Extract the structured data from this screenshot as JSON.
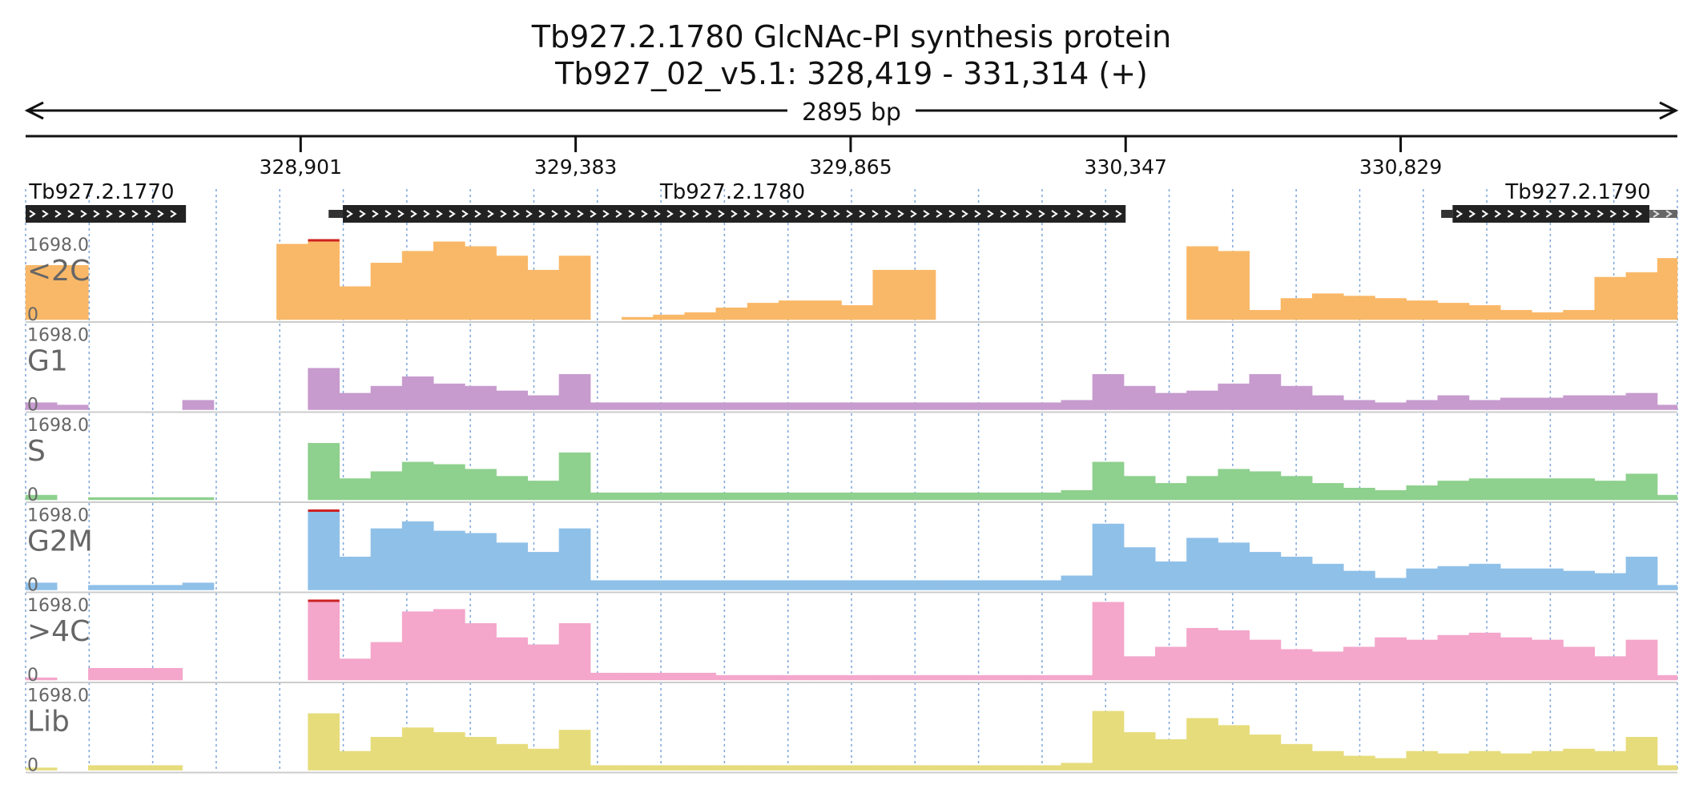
{
  "header": {
    "gene_title": "Tb927.2.1780  GlcNAc-PI synthesis protein",
    "location": "Tb927_02_v5.1: 328,419 - 331,314 (+)",
    "span_label": "2895 bp"
  },
  "colors": {
    "axis": "#111111",
    "gene_bar": "#222222",
    "grid": "#7ea6d8",
    "track_label": "#666666",
    "clip_marker": "#cc2222"
  },
  "chart_data": {
    "type": "bar",
    "region": {
      "start": 328419,
      "end": 331314,
      "strand": "+"
    },
    "ruler_ticks": [
      {
        "pos": 328901,
        "label": "328,901"
      },
      {
        "pos": 329383,
        "label": "329,383"
      },
      {
        "pos": 329865,
        "label": "329,865"
      },
      {
        "pos": 330347,
        "label": "330,347"
      },
      {
        "pos": 330829,
        "label": "330,829"
      }
    ],
    "genes": [
      {
        "id": "Tb927.2.1770",
        "start": 328419,
        "end": 328700,
        "utr_end": 328700,
        "label_anchor": "start",
        "label_pos": 328425
      },
      {
        "id": "Tb927.2.1780",
        "start": 328950,
        "end": 330347,
        "coding_start": 328975,
        "label_anchor": "middle",
        "label_pos": 329658
      },
      {
        "id": "Tb927.2.1790",
        "start": 330900,
        "end": 331314,
        "coding_start": 330920,
        "coding_end": 331265,
        "label_anchor": "middle",
        "label_pos": 331140
      }
    ],
    "ymax_label": "1698.0",
    "ymin_label": "0",
    "ylim": [
      0,
      1698
    ],
    "bin_starts": [
      328419,
      328474,
      328529,
      328584,
      328639,
      328694,
      328749,
      328804,
      328859,
      328914,
      328969,
      329024,
      329079,
      329134,
      329189,
      329244,
      329299,
      329354,
      329409,
      329464,
      329519,
      329574,
      329629,
      329684,
      329739,
      329794,
      329849,
      329904,
      329959,
      330014,
      330069,
      330124,
      330179,
      330234,
      330289,
      330344,
      330399,
      330454,
      330509,
      330564,
      330619,
      330674,
      330729,
      330784,
      330839,
      330894,
      330949,
      331004,
      331059,
      331114,
      331169,
      331224,
      331279
    ],
    "bin_width": 55,
    "series": [
      {
        "name": "<2C",
        "color": "#f9b868",
        "values": [
          1150,
          1150,
          0,
          0,
          0,
          0,
          0,
          0,
          1600,
          1698,
          700,
          1200,
          1450,
          1650,
          1550,
          1350,
          1050,
          1350,
          0,
          50,
          100,
          150,
          250,
          350,
          400,
          400,
          300,
          1050,
          1050,
          0,
          0,
          0,
          0,
          0,
          0,
          0,
          0,
          1550,
          1450,
          200,
          450,
          550,
          500,
          450,
          400,
          350,
          300,
          200,
          150,
          200,
          900,
          1000,
          1300
        ]
      },
      {
        "name": "G1",
        "color": "#c79bce",
        "values": [
          150,
          100,
          0,
          0,
          0,
          200,
          0,
          0,
          0,
          880,
          350,
          500,
          700,
          550,
          500,
          400,
          300,
          750,
          150,
          150,
          150,
          150,
          150,
          150,
          150,
          150,
          150,
          150,
          150,
          150,
          150,
          150,
          150,
          200,
          750,
          500,
          350,
          400,
          550,
          750,
          500,
          300,
          200,
          150,
          200,
          300,
          200,
          250,
          250,
          300,
          300,
          350,
          100
        ]
      },
      {
        "name": "S",
        "color": "#8ed08d",
        "values": [
          100,
          0,
          50,
          50,
          50,
          50,
          0,
          0,
          0,
          1200,
          450,
          600,
          800,
          750,
          650,
          500,
          400,
          1000,
          150,
          150,
          150,
          150,
          150,
          150,
          150,
          150,
          150,
          150,
          150,
          150,
          150,
          150,
          150,
          200,
          800,
          500,
          350,
          500,
          650,
          600,
          500,
          350,
          250,
          200,
          300,
          400,
          450,
          450,
          450,
          450,
          400,
          550,
          100
        ]
      },
      {
        "name": "G2M",
        "color": "#8fc0e8",
        "values": [
          150,
          0,
          100,
          100,
          100,
          150,
          0,
          0,
          0,
          1698,
          700,
          1300,
          1450,
          1250,
          1200,
          1000,
          800,
          1300,
          200,
          200,
          200,
          200,
          200,
          200,
          200,
          200,
          200,
          200,
          200,
          200,
          200,
          200,
          200,
          300,
          1400,
          900,
          600,
          1100,
          1000,
          800,
          700,
          550,
          400,
          250,
          450,
          500,
          550,
          450,
          450,
          400,
          350,
          700,
          100
        ]
      },
      {
        "name": ">4C",
        "color": "#f4a6cb",
        "values": [
          50,
          0,
          250,
          250,
          250,
          0,
          0,
          0,
          0,
          1698,
          450,
          800,
          1450,
          1500,
          1200,
          900,
          750,
          1200,
          150,
          150,
          150,
          150,
          100,
          100,
          100,
          100,
          100,
          100,
          100,
          100,
          100,
          100,
          100,
          100,
          1650,
          500,
          700,
          1100,
          1050,
          850,
          650,
          600,
          700,
          900,
          850,
          950,
          1000,
          900,
          850,
          700,
          500,
          850,
          100
        ]
      },
      {
        "name": "Lib",
        "color": "#e6dc7b",
        "values": [
          50,
          0,
          100,
          100,
          100,
          0,
          0,
          0,
          0,
          1200,
          400,
          700,
          900,
          800,
          700,
          550,
          450,
          850,
          100,
          100,
          100,
          100,
          100,
          100,
          100,
          100,
          100,
          100,
          100,
          100,
          100,
          100,
          100,
          150,
          1250,
          800,
          650,
          1100,
          950,
          750,
          550,
          400,
          300,
          250,
          400,
          350,
          400,
          350,
          400,
          450,
          400,
          700,
          100
        ]
      }
    ]
  }
}
